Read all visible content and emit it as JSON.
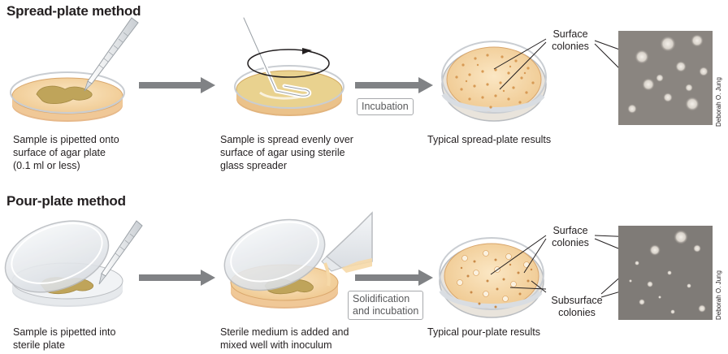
{
  "spread": {
    "title": "Spread-plate method",
    "step1": "Sample is pipetted onto\nsurface of agar plate\n(0.1 ml or less)",
    "step2": "Sample is spread evenly over\nsurface of agar using sterile\nglass spreader",
    "arrow_label": "Incubation",
    "result": "Typical spread-plate results",
    "surface_label": "Surface\ncolonies",
    "photo_credit": "Deborah O. Jung"
  },
  "pour": {
    "title": "Pour-plate method",
    "step1": "Sample is pipetted into\nsterile plate",
    "step2": "Sterile medium is added and\nmixed well with inoculum",
    "arrow_label": "Solidification\nand incubation",
    "result": "Typical pour-plate results",
    "surface_label": "Surface\ncolonies",
    "subsurface_label": "Subsurface\ncolonies",
    "photo_credit": "Deborah O. Jung"
  },
  "colors": {
    "agar": "#f6d9a8",
    "agar_dark": "#e9b97a",
    "inoculum": "#bfa45a",
    "arrow": "#808285",
    "photo_bg": "#8a8580"
  }
}
